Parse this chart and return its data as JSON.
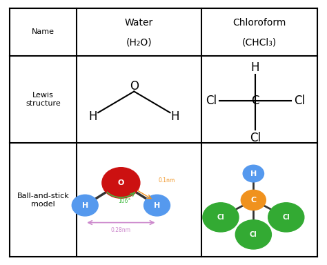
{
  "background_color": "#ffffff",
  "grid_color": "#000000",
  "col0": 0.03,
  "col1": 0.235,
  "col2": 0.615,
  "col3": 0.97,
  "row0": 0.97,
  "row1": 0.79,
  "row2": 0.46,
  "row3": 0.03,
  "row_labels": [
    "Name",
    "Lewis\nstructure",
    "Ball-and-stick\nmodel"
  ],
  "col1_name_line1": "Water",
  "col1_name_line2": "(H₂O)",
  "col2_name_line1": "Chloroform",
  "col2_name_line2": "(CHCl₃)",
  "water_ball_O_color": "#cc1111",
  "water_ball_H_color": "#5599ee",
  "chloroform_ball_C_color": "#f0921e",
  "chloroform_ball_H_color": "#5599ee",
  "chloroform_ball_Cl_color": "#33aa33",
  "angle_color": "#44bb44",
  "bond_color_orange": "#f0921e",
  "measure_color": "#cc88cc",
  "label_fontsize": 8,
  "lewis_fontsize": 12,
  "name_fontsize": 10,
  "ball_label_fontsize": 8
}
